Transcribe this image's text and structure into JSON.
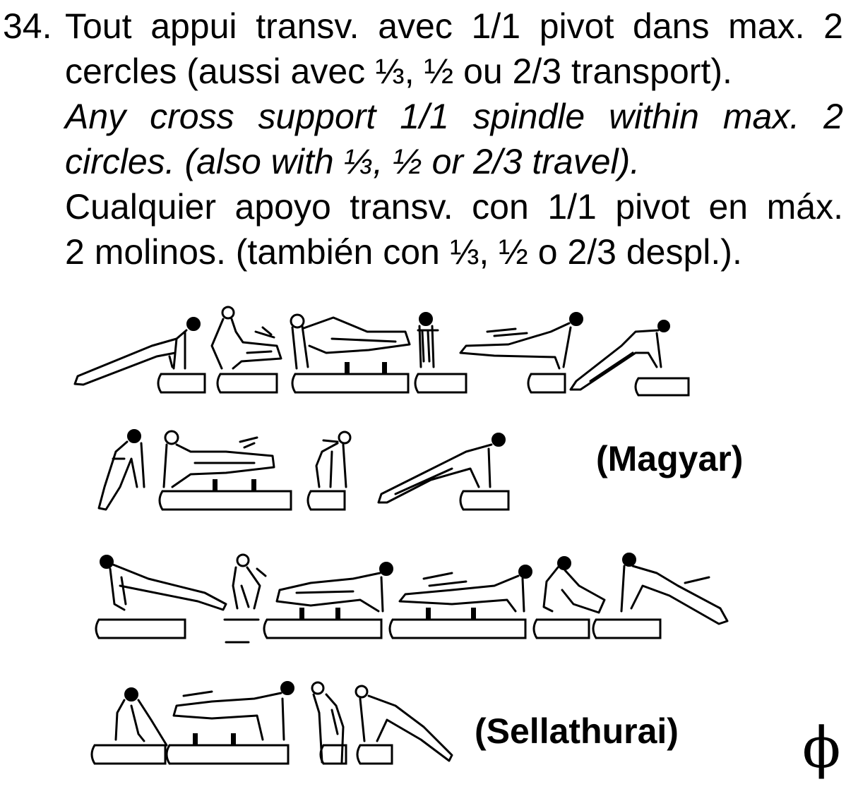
{
  "element": {
    "number": "34.",
    "french": [
      "Tout appui transv. avec 1/1 pivot dans max. 2",
      "cercles (aussi avec ⅓, ½ ou 2/3 transport)."
    ],
    "english": [
      "Any cross support 1/1 spindle within max. 2",
      "circles. (also with ⅓, ½ or 2/3 travel)."
    ],
    "spanish": [
      "Cualquier apoyo transv. con 1/1 pivot en máx.",
      "2 molinos. (también con ⅓, ½ o 2/3 despl.)."
    ]
  },
  "labels": {
    "magyar": "(Magyar)",
    "sellathurai": "(Sellathurai)"
  },
  "symbol": {
    "glyph": "ϕ"
  },
  "figures": {
    "rows": 4
  }
}
